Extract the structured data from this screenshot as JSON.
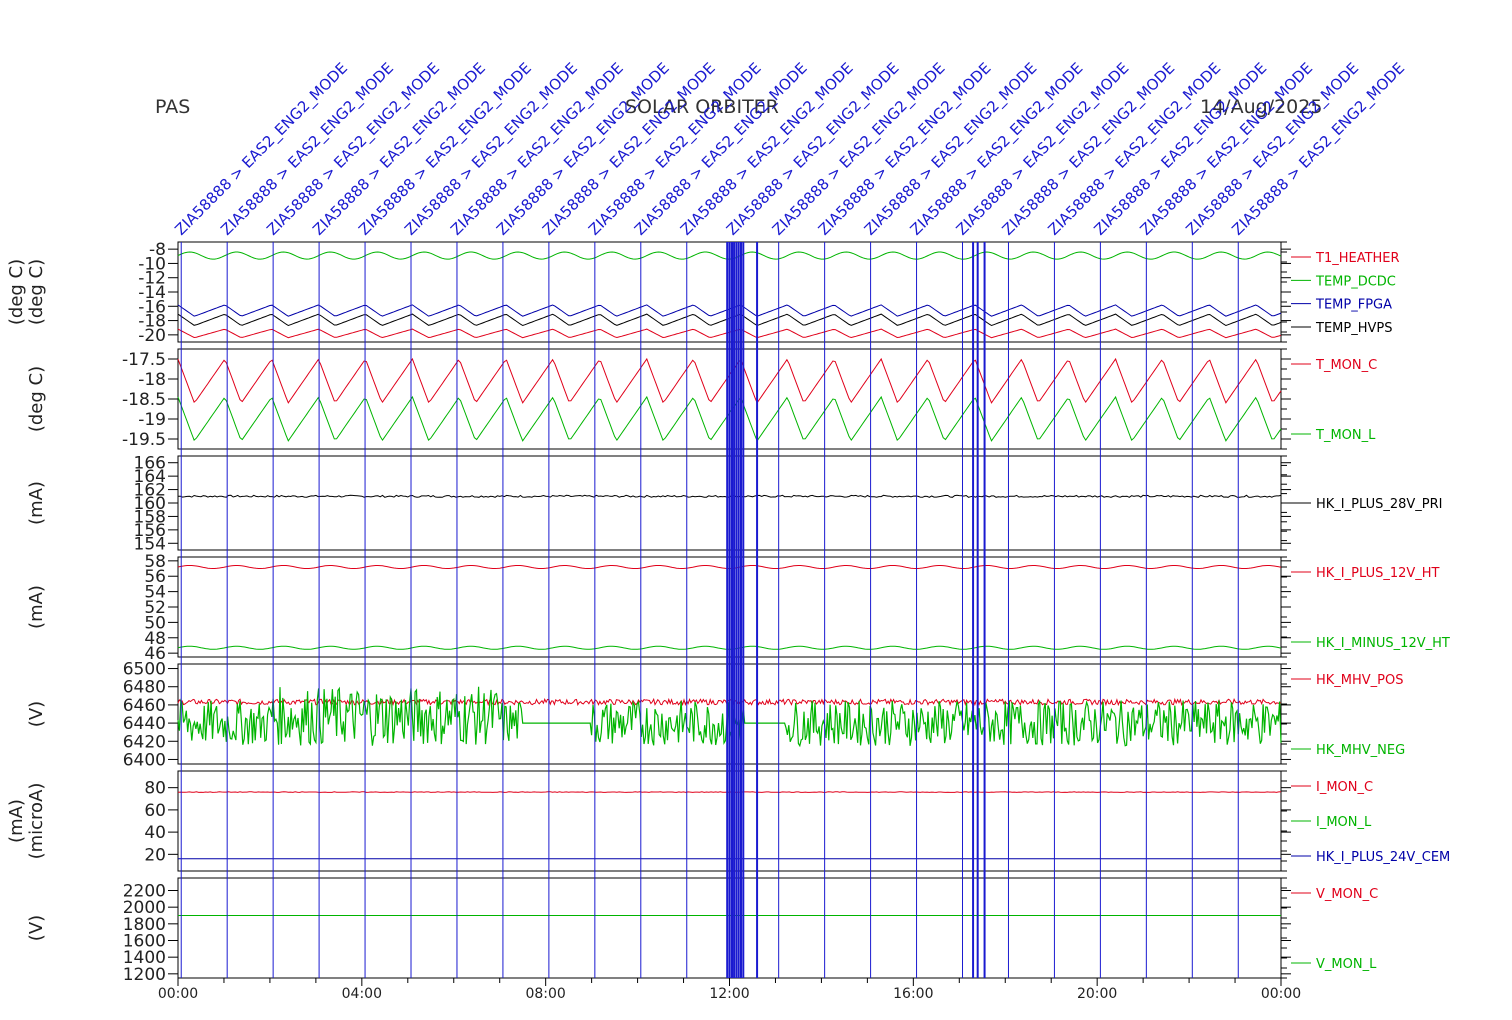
{
  "header": {
    "left": "PAS",
    "center": "SOLAR ORBITER",
    "right": "14/Aug/2025"
  },
  "colors": {
    "red": "#e0001a",
    "green": "#00b400",
    "blue": "#0000a8",
    "black": "#000000",
    "event": "#1a1ad0"
  },
  "events": {
    "label": "ZIA58888 > EAS2_ENG2_MODE",
    "hours": [
      0.07,
      1.07,
      2.07,
      3.07,
      4.07,
      5.07,
      6.07,
      7.07,
      8.07,
      9.07,
      10.07,
      11.07,
      12.07,
      13.07,
      14.07,
      15.07,
      16.07,
      17.07,
      18.07,
      19.07,
      20.07,
      21.07,
      22.07,
      23.07
    ],
    "burst_hours": [
      11.95,
      12.0,
      12.05,
      12.1,
      12.15,
      12.2,
      12.25,
      12.3,
      12.6,
      17.3,
      17.4,
      17.55
    ]
  },
  "chart_data": {
    "type": "line",
    "x_ticks": [
      "00:00",
      "04:00",
      "08:00",
      "12:00",
      "16:00",
      "20:00",
      "00:00"
    ],
    "x_range_hours": [
      0,
      24
    ],
    "panels": [
      {
        "ylabel": "(deg C)",
        "ylabel2": "(deg C)",
        "ylim": [
          -21,
          -7
        ],
        "ticks": [
          -8,
          -10,
          -12,
          -14,
          -16,
          -18,
          -20
        ],
        "series": [
          {
            "name": "T1_HEATHER",
            "color": "red",
            "base": -19.8,
            "amp": 0.6,
            "period": 1.02,
            "shape": "saw"
          },
          {
            "name": "TEMP_DCDC",
            "color": "green",
            "base": -8.9,
            "amp": 0.5,
            "period": 1.02,
            "shape": "sin"
          },
          {
            "name": "TEMP_FPGA",
            "color": "blue",
            "base": -16.6,
            "amp": 0.8,
            "period": 1.02,
            "shape": "saw"
          },
          {
            "name": "TEMP_HVPS",
            "color": "black",
            "base": -17.9,
            "amp": 0.8,
            "period": 1.02,
            "shape": "saw"
          }
        ]
      },
      {
        "ylabel": "(deg C)",
        "ylim": [
          -19.75,
          -17.25
        ],
        "ticks": [
          -17.5,
          -18.0,
          -18.5,
          -19.0,
          -19.5
        ],
        "series": [
          {
            "name": "T_MON_C",
            "color": "red",
            "base": -18.05,
            "amp": 0.55,
            "period": 1.02,
            "shape": "saw"
          },
          {
            "name": "T_MON_L",
            "color": "green",
            "base": -19.0,
            "amp": 0.55,
            "period": 1.02,
            "shape": "saw"
          }
        ]
      },
      {
        "ylabel": "(mA)",
        "ylim": [
          153,
          167
        ],
        "ticks": [
          166,
          164,
          162,
          160,
          158,
          156,
          154
        ],
        "series": [
          {
            "name": "HK_I_PLUS_28V_PRI",
            "color": "black",
            "base": 161.0,
            "amp": 0.15,
            "period": 0.2,
            "shape": "noise"
          }
        ]
      },
      {
        "ylabel": "(mA)",
        "ylim": [
          45.5,
          58.5
        ],
        "ticks": [
          58,
          56,
          54,
          52,
          50,
          48,
          46
        ],
        "series": [
          {
            "name": "HK_I_PLUS_12V_HT",
            "color": "red",
            "base": 57.2,
            "amp": 0.2,
            "period": 1.02,
            "shape": "sin"
          },
          {
            "name": "HK_I_MINUS_12V_HT",
            "color": "green",
            "base": 46.7,
            "amp": 0.2,
            "period": 1.02,
            "shape": "sin"
          }
        ]
      },
      {
        "ylabel": "(V)",
        "ylim": [
          6395,
          6505
        ],
        "ticks": [
          6500,
          6480,
          6460,
          6440,
          6420,
          6400
        ],
        "series": [
          {
            "name": "HK_MHV_POS",
            "color": "red",
            "base": 6462,
            "amp": 6,
            "period": 0.05,
            "shape": "hv"
          },
          {
            "name": "HK_MHV_NEG",
            "color": "green",
            "base": 6415,
            "amp": 50,
            "period": 0.05,
            "shape": "hvneg"
          }
        ]
      },
      {
        "ylabel": "(microA)",
        "ylabel2": "(mA)",
        "ylim": [
          5,
          95
        ],
        "ticks": [
          80,
          60,
          40,
          20
        ],
        "series": [
          {
            "name": "I_MON_C",
            "color": "red",
            "base": 76,
            "amp": 0.3,
            "period": 0.3,
            "shape": "noise"
          },
          {
            "name": "I_MON_L",
            "color": "green",
            "base": 0,
            "amp": 0,
            "period": 1,
            "shape": "none"
          },
          {
            "name": "HK_I_PLUS_24V_CEM",
            "color": "blue",
            "base": 16,
            "amp": 0,
            "period": 1,
            "shape": "flat"
          }
        ]
      },
      {
        "ylabel": "(V)",
        "ylim": [
          1150,
          2350
        ],
        "ticks": [
          2200,
          2000,
          1800,
          1600,
          1400,
          1200
        ],
        "series": [
          {
            "name": "V_MON_C",
            "color": "red",
            "base": 0,
            "amp": 0,
            "period": 1,
            "shape": "none"
          },
          {
            "name": "V_MON_L",
            "color": "green",
            "base": 1900,
            "amp": 0,
            "period": 1,
            "shape": "flat"
          }
        ]
      }
    ]
  }
}
